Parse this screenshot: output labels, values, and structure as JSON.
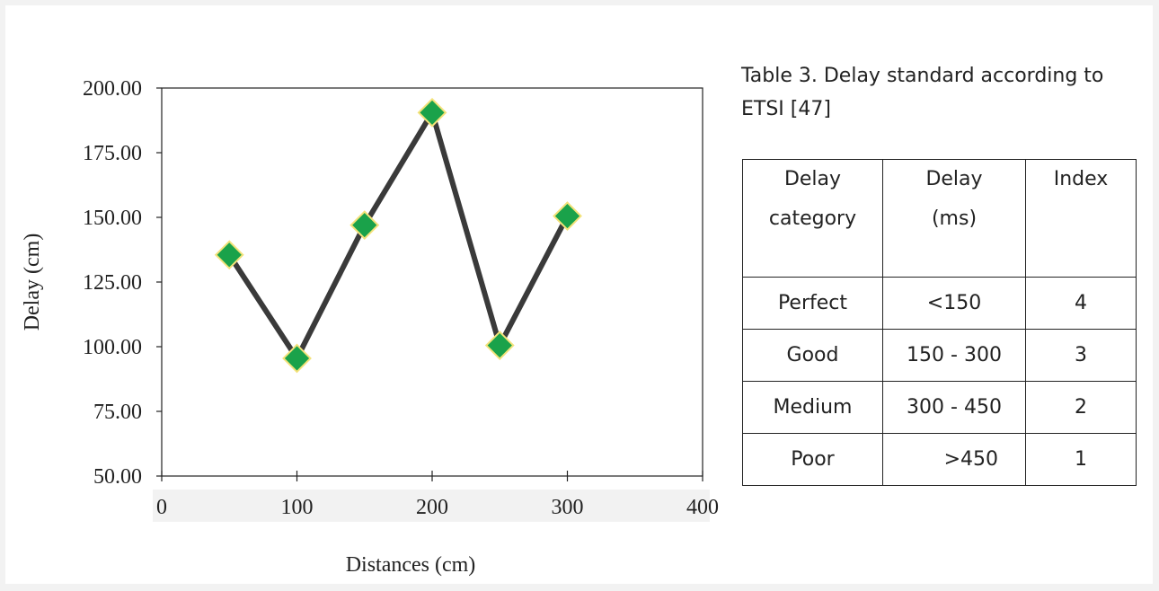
{
  "chart_data": {
    "type": "line",
    "title": "",
    "xlabel": "Distances (cm)",
    "ylabel": "Delay (cm)",
    "xlim": [
      0,
      400
    ],
    "ylim": [
      50,
      200
    ],
    "xticks": [
      0,
      100,
      200,
      300,
      400
    ],
    "xtick_labels": [
      "0",
      "100",
      "200",
      "300",
      "400"
    ],
    "yticks": [
      50,
      75,
      100,
      125,
      150,
      175,
      200
    ],
    "ytick_labels": [
      "50.00",
      "75.00",
      "100.00",
      "125.00",
      "150.00",
      "175.00",
      "200.00"
    ],
    "grid": false,
    "legend": false,
    "series": [
      {
        "x": [
          50,
          100,
          150,
          200,
          250,
          300
        ],
        "y": [
          135.5,
          95.5,
          147,
          190.5,
          100.5,
          150.5
        ],
        "line_color": "#3a3a3a",
        "marker": "diamond",
        "marker_fill": "#1aa24a",
        "marker_edge": "#f3e27a"
      }
    ]
  },
  "table": {
    "caption": "Table 3. Delay standard according to ETSI [47]",
    "headers": [
      {
        "line1": "Delay",
        "line2": "category"
      },
      {
        "line1": "Delay",
        "line2": "(ms)"
      },
      {
        "line1": "Index",
        "line2": ""
      }
    ],
    "rows": [
      [
        "Perfect",
        "<150",
        "4"
      ],
      [
        "Good",
        "150 - 300",
        "3"
      ],
      [
        "Medium",
        "300 - 450",
        "2"
      ],
      [
        "Poor",
        ">450",
        "1"
      ]
    ]
  }
}
